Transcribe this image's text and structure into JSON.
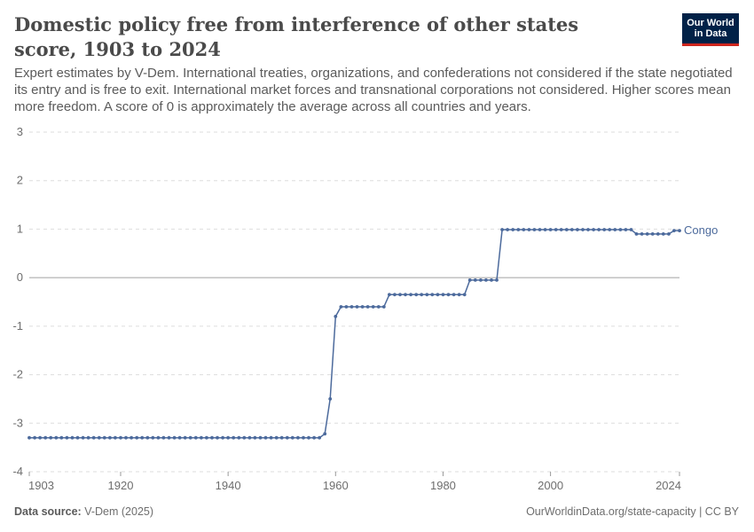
{
  "header": {
    "title": "Domestic policy free from interference of other states score, 1903 to 2024",
    "subtitle": "Expert estimates by V-Dem. International treaties, organizations, and confederations not considered if the state negotiated its entry and is free to exit. International market forces and transnational corporations not considered. Higher scores mean more freedom. A score of 0 is approximately the average across all countries and years."
  },
  "logo": {
    "line1": "Our World",
    "line2": "in Data",
    "bg_color": "#002147",
    "accent_color": "#ce261e"
  },
  "footer": {
    "source_label": "Data source:",
    "source": "V-Dem (2025)",
    "right": "OurWorldinData.org/state-capacity | CC BY"
  },
  "chart_data": {
    "type": "line",
    "x_range": [
      1903,
      2024
    ],
    "ylim": [
      -4,
      3
    ],
    "y_ticks": [
      3,
      2,
      1,
      0,
      -1,
      -2,
      -3,
      -4
    ],
    "y_tick_labels": [
      "3",
      "2",
      "1",
      "0",
      "-1",
      "-2",
      "-3",
      "-4"
    ],
    "x_ticks": [
      1903,
      1920,
      1940,
      1960,
      1980,
      2000,
      2024
    ],
    "x_tick_labels": [
      "1903",
      "1920",
      "1940",
      "1960",
      "1980",
      "2000",
      "2024"
    ],
    "grid": "horizontal dashed",
    "series": [
      {
        "name": "Congo",
        "color": "#4c6a9c",
        "segments": [
          {
            "from": 1903,
            "to": 1957,
            "y": -3.3
          },
          {
            "from": 1958,
            "to": 1958,
            "y": -3.22
          },
          {
            "from": 1959,
            "to": 1959,
            "y": -2.5
          },
          {
            "from": 1960,
            "to": 1960,
            "y": -0.8
          },
          {
            "from": 1961,
            "to": 1969,
            "y": -0.6
          },
          {
            "from": 1970,
            "to": 1984,
            "y": -0.35
          },
          {
            "from": 1985,
            "to": 1990,
            "y": -0.05
          },
          {
            "from": 1991,
            "to": 2015,
            "y": 0.99
          },
          {
            "from": 2016,
            "to": 2022,
            "y": 0.9
          },
          {
            "from": 2023,
            "to": 2024,
            "y": 0.97
          }
        ]
      }
    ]
  }
}
